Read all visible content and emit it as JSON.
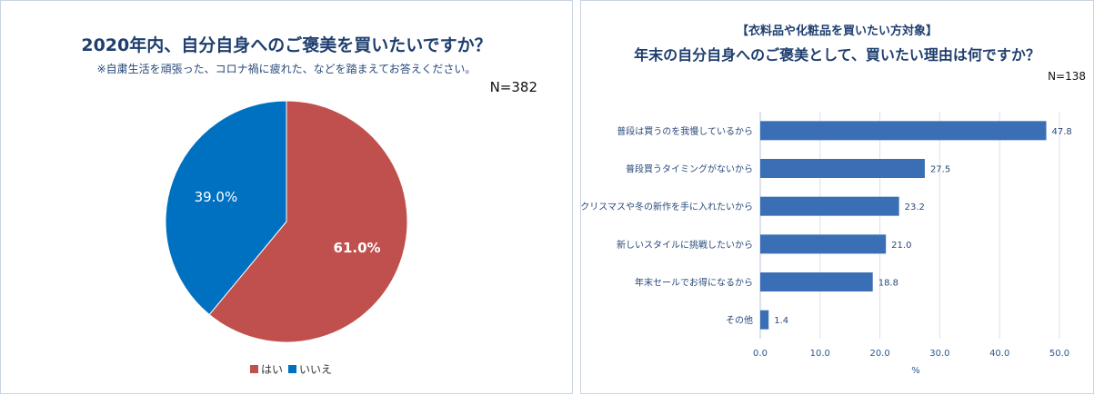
{
  "left": {
    "title": "2020年内、自分自身へのご褒美を買いたいですか？",
    "subtitle": "※自粛生活を頑張った、コロナ禍に疲れた、などを踏まえてお答えください。",
    "n_label": "N=382"
  },
  "right": {
    "target": "【衣料品や化粧品を買いたい方対象】",
    "title": "年末の自分自身へのご褒美として、買いたい理由は何ですか？",
    "n_label": "N=138"
  },
  "chart_data": [
    {
      "type": "pie",
      "categories": [
        "はい",
        "いいえ"
      ],
      "values": [
        61.0,
        39.0
      ],
      "labels": [
        "61.0%",
        "39.0%"
      ],
      "colors": [
        "#c0504d",
        "#0070c0"
      ],
      "legend": "bottom"
    },
    {
      "type": "bar",
      "orientation": "horizontal",
      "categories": [
        "普段は買うのを我慢しているから",
        "普段買うタイミングがないから",
        "クリスマスや冬の新作を手に入れたいから",
        "新しいスタイルに挑戦したいから",
        "年末セールでお得になるから",
        "その他"
      ],
      "values": [
        47.8,
        27.5,
        23.2,
        21.0,
        18.8,
        1.4
      ],
      "value_labels": [
        "47.8",
        "27.5",
        "23.2",
        "21.0",
        "18.8",
        "1.4"
      ],
      "xlabel": "%",
      "xlim": [
        0,
        50
      ],
      "xticks": [
        "0.0",
        "10.0",
        "20.0",
        "30.0",
        "40.0",
        "50.0"
      ],
      "grid": true,
      "bar_color": "#3a6fb5"
    }
  ]
}
